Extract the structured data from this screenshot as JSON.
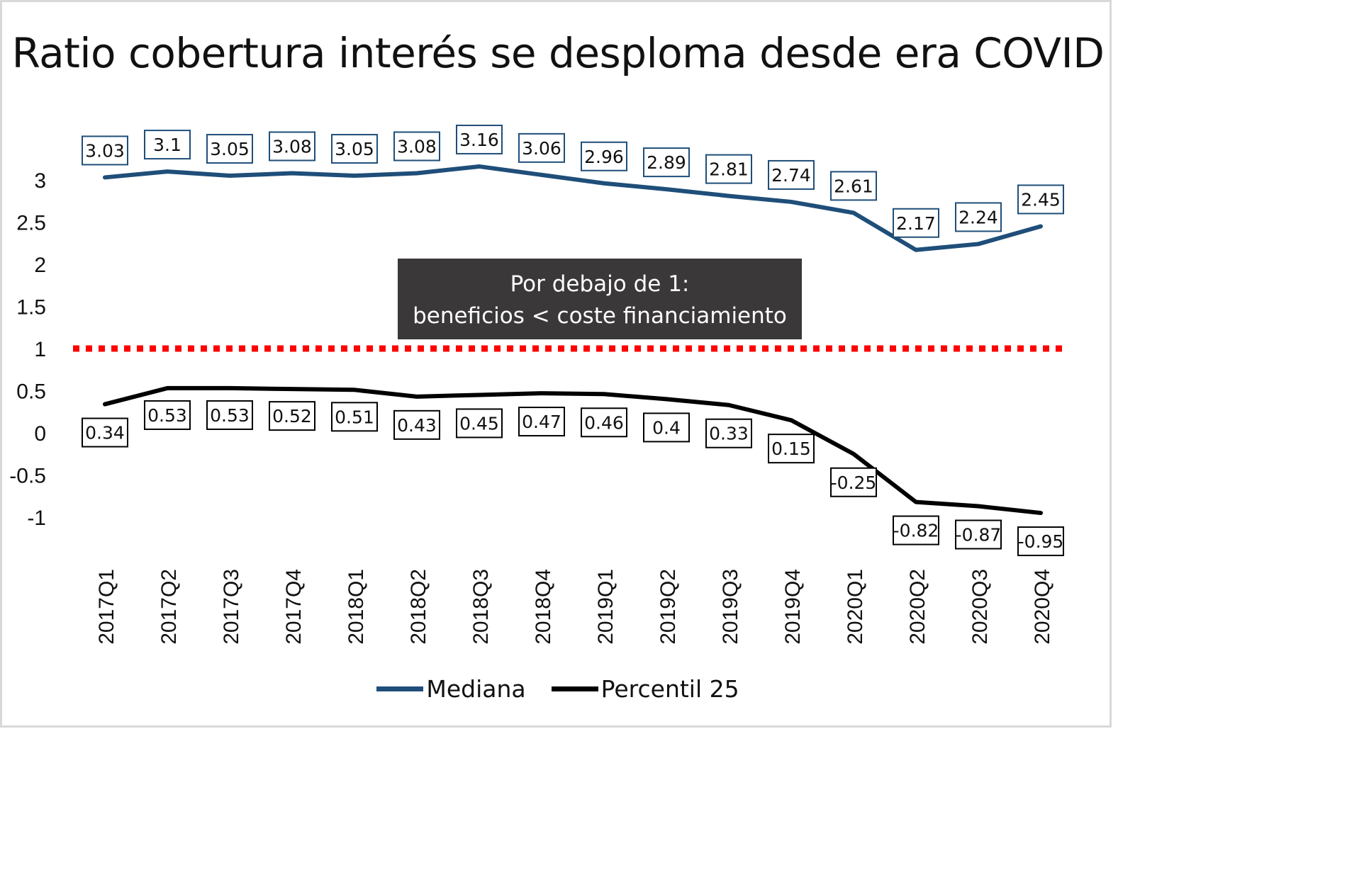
{
  "chart_data": {
    "type": "line",
    "title": "Ratio cobertura interés se desploma desde era COVID",
    "categories": [
      "2017Q1",
      "2017Q2",
      "2017Q3",
      "2017Q4",
      "2018Q1",
      "2018Q2",
      "2018Q3",
      "2018Q4",
      "2019Q1",
      "2019Q2",
      "2019Q3",
      "2019Q4",
      "2020Q1",
      "2020Q2",
      "2020Q3",
      "2020Q4"
    ],
    "series": [
      {
        "name": "Mediana",
        "color": "#1f4e79",
        "values": [
          3.03,
          3.1,
          3.05,
          3.08,
          3.05,
          3.08,
          3.16,
          3.06,
          2.96,
          2.89,
          2.81,
          2.74,
          2.61,
          2.17,
          2.24,
          2.45
        ],
        "labels": [
          "3.03",
          "3.1",
          "3.05",
          "3.08",
          "3.05",
          "3.08",
          "3.16",
          "3.06",
          "2.96",
          "2.89",
          "2.81",
          "2.74",
          "2.61",
          "2.17",
          "2.24",
          "2.45"
        ]
      },
      {
        "name": "Percentil 25",
        "color": "#000000",
        "values": [
          0.34,
          0.53,
          0.53,
          0.52,
          0.51,
          0.43,
          0.45,
          0.47,
          0.46,
          0.4,
          0.33,
          0.15,
          -0.25,
          -0.82,
          -0.87,
          -0.95
        ],
        "labels": [
          "0.34",
          "0.53",
          "0.53",
          "0.52",
          "0.51",
          "0.43",
          "0.45",
          "0.47",
          "0.46",
          "0.4",
          "0.33",
          "0.15",
          "-0.25",
          "-0.82",
          "-0.87",
          "-0.95"
        ]
      }
    ],
    "y_ticks": [
      "3",
      "2.5",
      "2",
      "1.5",
      "1",
      "0.5",
      "0",
      "-0.5",
      "-1"
    ],
    "ylim": [
      -1,
      3
    ],
    "reference_line": {
      "value": 1,
      "color": "#ff0000",
      "style": "dotted"
    },
    "annotation": {
      "line1": "Por debajo de 1:",
      "line2": "beneficios < coste financiamiento"
    },
    "legend_position": "bottom",
    "grid": false
  }
}
